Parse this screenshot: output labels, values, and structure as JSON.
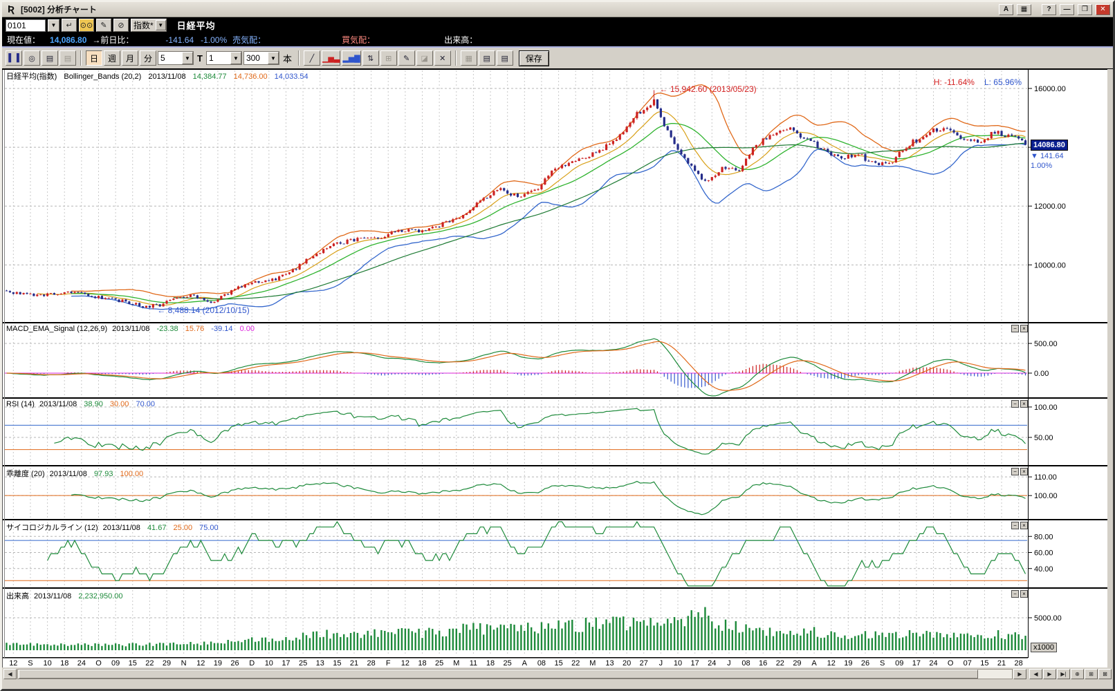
{
  "window": {
    "title": "[5002] 分析チャート",
    "logo": "Ʀ",
    "btn_a": "A",
    "btn_panel": "▦",
    "btn_help": "?",
    "btn_min": "—",
    "btn_restore": "❒",
    "btn_close": "✕"
  },
  "symbol_bar": {
    "code": "0101",
    "category": "指数*",
    "name": "日経平均"
  },
  "quote_bar": {
    "price_label": "現在値：",
    "price": "14,086.80",
    "compare_label": "→前日比：",
    "change": "-141.64",
    "change_pct": "-1.00%",
    "ask_label": "売気配：",
    "bid_label": "買気配：",
    "volume_label": "出来高："
  },
  "toolbar": {
    "daily": "日",
    "weekly": "週",
    "monthly": "月",
    "minute": "分",
    "period_value": "5",
    "t_label": "T",
    "interval_value": "1",
    "bars_value": "300",
    "bars_label": "本",
    "save": "保存"
  },
  "icons": {
    "candlestick": "▌▐",
    "zoom": "◎",
    "page_new": "▤",
    "page_copy": "▤",
    "return": "↵",
    "binocular": "⊙⊙",
    "edit": "✎",
    "clear": "⊘",
    "line_chart": "╱",
    "bars_compare": "▁▅▃",
    "bars": "▂▅▇",
    "arrows": "⇅",
    "grid": "⊞",
    "pencil": "✎",
    "eraser": "◪",
    "delete": "✕",
    "layout": "▦",
    "sheet1": "▤",
    "sheet2": "▤",
    "arrow_small": "▼"
  },
  "legends": {
    "main": {
      "name": "日経平均(指数)",
      "study": "Bollinger_Bands (20,2)",
      "date": "2013/11/08",
      "mid": "14,384.77",
      "upper": "14,736.00",
      "lower": "14,033.54"
    },
    "macd": {
      "study": "MACD_EMA_Signal (12,26,9)",
      "date": "2013/11/08",
      "macd": "-23.38",
      "hist": "15.76",
      "signal": "-39.14",
      "zero": "0.00"
    },
    "rsi": {
      "study": "RSI (14)",
      "date": "2013/11/08",
      "value": "38.90",
      "low": "30.00",
      "high": "70.00"
    },
    "kairi": {
      "study": "乖離度 (20)",
      "date": "2013/11/08",
      "value": "97.93",
      "base": "100.00"
    },
    "psy": {
      "study": "サイコロジカルライン (12)",
      "date": "2013/11/08",
      "value": "41.67",
      "low": "25.00",
      "high": "75.00"
    },
    "vol": {
      "study": "出来高",
      "date": "2013/11/08",
      "value": "2,232,950.00"
    }
  },
  "annotations": {
    "high_pct": "H: -11.64%",
    "low_pct": "L: 65.96%",
    "peak_text": "← 15,942.60 (2013/05/23)",
    "trough_text": "← 8,488.14 (2012/10/15)"
  },
  "axis": {
    "price_badge": "14086.80",
    "price_change": "▼ 141.64",
    "price_change_pct": "1.00%",
    "volume_unit": "x1000"
  },
  "hscroll": {
    "left": "◀",
    "right": "▶",
    "nav": [
      "◀",
      "▶",
      "▶|",
      "⊕",
      "⊞",
      "⊠"
    ],
    "panel_min": "−",
    "panel_close": "×"
  },
  "colors": {
    "up": "#cc2222",
    "down": "#252d8a",
    "ma_short": "#d8a018",
    "bb_mid": "#2fb32f",
    "ma_long": "#1d7a33",
    "bb_upper": "#e06818",
    "bb_lower": "#3366cc",
    "macd": "#1d8a3a",
    "macd_signal": "#e06818",
    "hist_pos": "#cc2222",
    "hist_neg": "#3355cc",
    "zero": "#dd22dd",
    "osc": "#1d8a3a",
    "line_blue": "#3366cc",
    "line_orange": "#e06818",
    "volume": "#1d8a3a",
    "grid": "#c9c9c9"
  },
  "chart_data": {
    "type": "candlestick",
    "title": "日経平均(指数)",
    "studies": [
      "Bollinger_Bands (20,2)",
      "MACD_EMA_Signal (12,26,9)",
      "RSI (14)",
      "乖離度 (20)",
      "サイコロジカルライン (12)",
      "出来高"
    ],
    "bars": 300,
    "x_labels": [
      "12",
      "S",
      "10",
      "18",
      "24",
      "O",
      "09",
      "15",
      "22",
      "29",
      "N",
      "12",
      "19",
      "26",
      "D",
      "10",
      "17",
      "25",
      "13",
      "15",
      "21",
      "28",
      "F",
      "12",
      "18",
      "25",
      "M",
      "11",
      "18",
      "25",
      "A",
      "08",
      "15",
      "22",
      "M",
      "13",
      "20",
      "27",
      "J",
      "10",
      "17",
      "24",
      "J",
      "08",
      "16",
      "22",
      "29",
      "A",
      "12",
      "19",
      "26",
      "S",
      "09",
      "17",
      "24",
      "O",
      "07",
      "15",
      "21",
      "28"
    ],
    "ylim_main": [
      8151,
      16658
    ],
    "peak": {
      "value": 15942.6,
      "date": "2013/05/23"
    },
    "trough": {
      "value": 8488.14,
      "date": "2012/10/15"
    },
    "latest": {
      "date": "2013/11/08",
      "close": 14086.8,
      "change": -141.64,
      "change_pct": -1.0,
      "bb_mid": 14384.77,
      "bb_upper": 14736.0,
      "bb_lower": 14033.54,
      "macd": -23.38,
      "macd_hist": 15.76,
      "macd_signal": -39.14,
      "rsi": 38.9,
      "kairi": 97.93,
      "psychological": 41.67,
      "volume_x1000": 2232.95
    },
    "indicators": {
      "bollinger": [
        20,
        2
      ],
      "ma": [
        10,
        20,
        50
      ],
      "macd": [
        12,
        26,
        9
      ],
      "rsi": 14,
      "kairi": 20,
      "psychological": 12
    },
    "close_anchors": [
      9085,
      9040,
      8960,
      9030,
      9120,
      8950,
      8840,
      8760,
      8580,
      8640,
      8920,
      8950,
      8680,
      9050,
      9350,
      9440,
      9560,
      9900,
      10300,
      10650,
      10800,
      10920,
      10930,
      11190,
      11150,
      11250,
      11500,
      11700,
      12280,
      12560,
      12340,
      12500,
      13200,
      13450,
      13650,
      13980,
      14400,
      15100,
      15550,
      14250,
      13500,
      12800,
      13300,
      13250,
      14100,
      14450,
      14600,
      14300,
      13900,
      13600,
      13750,
      13400,
      13550,
      14100,
      14450,
      14700,
      14250,
      14180,
      14500,
      14350,
      14086.8
    ],
    "volume_anchors": [
      950,
      900,
      850,
      880,
      920,
      860,
      800,
      850,
      980,
      900,
      950,
      1000,
      1100,
      1350,
      1500,
      1600,
      1800,
      2000,
      2300,
      2500,
      2400,
      2600,
      2500,
      2700,
      2600,
      2800,
      3000,
      3200,
      3400,
      3300,
      3100,
      3400,
      3800,
      3600,
      4000,
      4200,
      4000,
      4400,
      4800,
      5200,
      4600,
      5400,
      4200,
      3800,
      3400,
      3000,
      2800,
      3000,
      2600,
      2400,
      2200,
      2400,
      2300,
      2500,
      2600,
      2400,
      2300,
      2100,
      2400,
      2300,
      2233
    ],
    "panels": [
      {
        "id": "main",
        "yticks": [
          {
            "v": 16000,
            "t": "16000.00"
          },
          {
            "v": 14000,
            "t": ""
          },
          {
            "v": 12000,
            "t": "12000.00"
          },
          {
            "v": 10000,
            "t": "10000.00"
          }
        ],
        "hlines": []
      },
      {
        "id": "macd",
        "yticks": [
          {
            "v": 500,
            "t": "500.00"
          },
          {
            "v": 0,
            "t": "0.00"
          }
        ],
        "hlines": []
      },
      {
        "id": "rsi",
        "yticks": [
          {
            "v": 100,
            "t": "100.00"
          },
          {
            "v": 50,
            "t": "50.00"
          }
        ],
        "hlines": [
          {
            "v": 70,
            "c": "blue"
          },
          {
            "v": 30,
            "c": "orange"
          }
        ]
      },
      {
        "id": "kairi",
        "yticks": [
          {
            "v": 110,
            "t": "110.00"
          },
          {
            "v": 100,
            "t": "100.00"
          }
        ],
        "hlines": [
          {
            "v": 100,
            "c": "orange"
          }
        ]
      },
      {
        "id": "psy",
        "yticks": [
          {
            "v": 80,
            "t": "80.00"
          },
          {
            "v": 60,
            "t": "60.00"
          },
          {
            "v": 40,
            "t": "40.00"
          }
        ],
        "hlines": [
          {
            "v": 75,
            "c": "blue"
          },
          {
            "v": 25,
            "c": "orange"
          }
        ]
      },
      {
        "id": "vol",
        "yticks": [
          {
            "v": 5000,
            "t": "5000.00"
          }
        ],
        "hlines": []
      }
    ]
  }
}
